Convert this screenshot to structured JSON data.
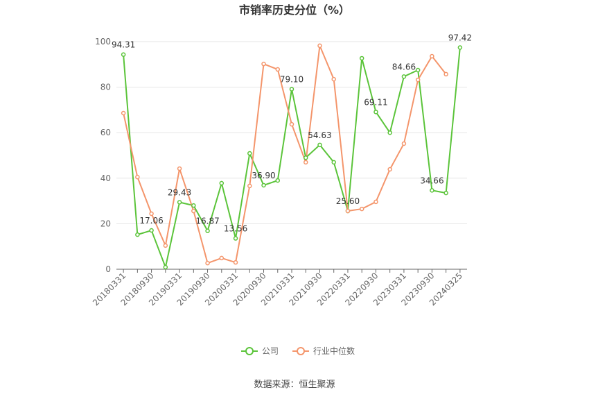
{
  "chart_data": {
    "type": "line",
    "title": "市销率历史分位（%）",
    "source": "数据来源：恒生聚源",
    "categories": [
      "20180331",
      null,
      "20180930",
      null,
      "20190331",
      null,
      "20190930",
      null,
      "20200331",
      null,
      "20200930",
      null,
      "20210331",
      null,
      "20210930",
      null,
      "20220331",
      null,
      "20220930",
      null,
      "20230331",
      null,
      "20230930",
      null,
      "20240325"
    ],
    "series": [
      {
        "name": "公司",
        "color": "#5bc43a",
        "values": [
          94.31,
          15.2,
          17.06,
          0.9,
          29.43,
          28,
          16.87,
          37.8,
          13.56,
          50.9,
          36.9,
          39,
          79.1,
          49,
          54.63,
          47,
          25.6,
          92.7,
          69.11,
          60,
          84.66,
          87.5,
          34.66,
          33.5,
          97.42
        ],
        "value_labels": [
          "94.31",
          null,
          "17.06",
          null,
          "29.43",
          null,
          "16.87",
          null,
          "13.56",
          null,
          "36.90",
          null,
          "79.10",
          null,
          "54.63",
          null,
          "25.60",
          null,
          "69.11",
          null,
          "84.66",
          null,
          "34.66",
          null,
          "97.42"
        ]
      },
      {
        "name": "行业中位数",
        "color": "#f4956b",
        "values": [
          68.6,
          40.5,
          24.4,
          10.4,
          44.2,
          25.6,
          2.7,
          4.9,
          3,
          36.6,
          90.2,
          87.8,
          63.7,
          47,
          98.2,
          83.5,
          25.6,
          26.5,
          29.6,
          43.9,
          55.2,
          83.2,
          93.6,
          85.7,
          null
        ]
      }
    ],
    "ylim": [
      0,
      100
    ],
    "yticks": [
      0,
      20,
      40,
      60,
      80,
      100
    ],
    "grid": true,
    "legend": "bottom"
  }
}
